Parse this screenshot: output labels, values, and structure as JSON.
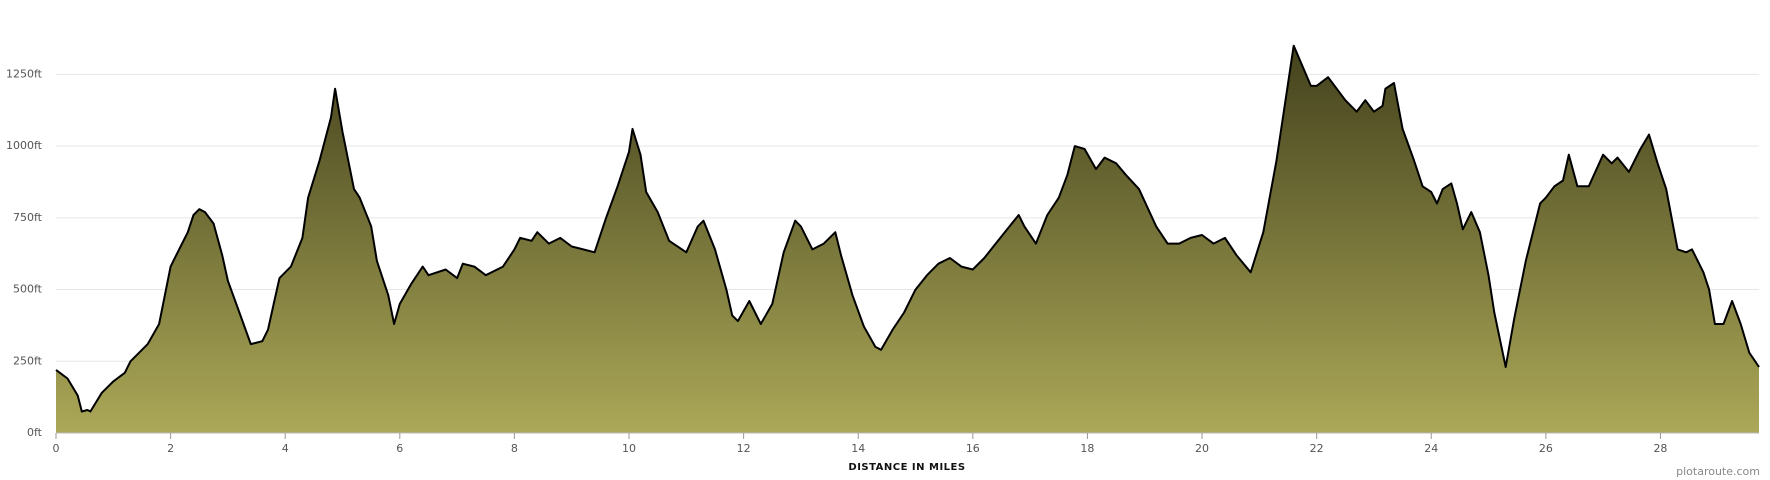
{
  "chart_data": {
    "type": "area",
    "x_label": "DISTANCE IN MILES",
    "credit": "plotaroute.com",
    "x": [
      0,
      0.2,
      0.38,
      0.45,
      0.55,
      0.6,
      0.8,
      1.0,
      1.2,
      1.3,
      1.5,
      1.6,
      1.8,
      2.0,
      2.1,
      2.3,
      2.4,
      2.5,
      2.6,
      2.75,
      2.9,
      3.0,
      3.2,
      3.4,
      3.6,
      3.7,
      3.8,
      3.9,
      4.1,
      4.3,
      4.4,
      4.6,
      4.8,
      4.87,
      5.0,
      5.2,
      5.3,
      5.5,
      5.6,
      5.8,
      5.9,
      6.0,
      6.2,
      6.4,
      6.5,
      6.8,
      7.0,
      7.1,
      7.3,
      7.5,
      7.8,
      8.0,
      8.1,
      8.3,
      8.4,
      8.6,
      8.8,
      9.0,
      9.2,
      9.4,
      9.6,
      9.8,
      10.0,
      10.06,
      10.2,
      10.3,
      10.5,
      10.7,
      11.0,
      11.2,
      11.3,
      11.5,
      11.7,
      11.8,
      11.9,
      12.1,
      12.3,
      12.5,
      12.7,
      12.9,
      13.0,
      13.2,
      13.4,
      13.6,
      13.7,
      13.9,
      14.1,
      14.3,
      14.4,
      14.6,
      14.8,
      15.0,
      15.2,
      15.4,
      15.6,
      15.8,
      16.0,
      16.2,
      16.4,
      16.6,
      16.8,
      16.9,
      17.1,
      17.3,
      17.5,
      17.65,
      17.78,
      17.95,
      18.15,
      18.3,
      18.5,
      18.67,
      18.9,
      19.2,
      19.4,
      19.6,
      19.8,
      20.0,
      20.2,
      20.4,
      20.6,
      20.85,
      21.07,
      21.3,
      21.6,
      21.9,
      22.0,
      22.2,
      22.5,
      22.7,
      22.85,
      23.0,
      23.15,
      23.2,
      23.35,
      23.5,
      23.7,
      23.85,
      24.0,
      24.1,
      24.2,
      24.35,
      24.45,
      24.55,
      24.7,
      24.85,
      25.0,
      25.1,
      25.3,
      25.45,
      25.65,
      25.9,
      26.0,
      26.15,
      26.3,
      26.4,
      26.55,
      26.75,
      27.0,
      27.15,
      27.25,
      27.45,
      27.65,
      27.8,
      27.95,
      28.1,
      28.3,
      28.45,
      28.55,
      28.75,
      28.85,
      28.95,
      29.1,
      29.25,
      29.4,
      29.55,
      29.72
    ],
    "values": [
      220,
      190,
      130,
      75,
      80,
      75,
      140,
      180,
      210,
      250,
      290,
      310,
      380,
      580,
      620,
      700,
      760,
      780,
      770,
      730,
      620,
      530,
      420,
      310,
      320,
      360,
      450,
      540,
      580,
      680,
      820,
      950,
      1100,
      1200,
      1050,
      850,
      820,
      720,
      600,
      480,
      380,
      450,
      520,
      580,
      550,
      570,
      540,
      590,
      580,
      550,
      580,
      640,
      680,
      670,
      700,
      660,
      680,
      650,
      640,
      630,
      750,
      860,
      980,
      1060,
      970,
      840,
      770,
      670,
      630,
      720,
      740,
      640,
      500,
      410,
      390,
      460,
      380,
      450,
      630,
      740,
      720,
      640,
      660,
      700,
      620,
      480,
      370,
      300,
      290,
      360,
      420,
      500,
      550,
      590,
      610,
      580,
      570,
      610,
      660,
      710,
      760,
      720,
      660,
      760,
      820,
      900,
      1000,
      990,
      920,
      960,
      940,
      900,
      850,
      720,
      660,
      660,
      680,
      690,
      660,
      680,
      620,
      560,
      700,
      950,
      1350,
      1210,
      1210,
      1240,
      1160,
      1120,
      1160,
      1120,
      1140,
      1200,
      1220,
      1060,
      950,
      860,
      840,
      800,
      850,
      870,
      800,
      710,
      770,
      700,
      550,
      420,
      230,
      400,
      600,
      800,
      820,
      860,
      880,
      970,
      860,
      860,
      970,
      940,
      960,
      910,
      990,
      1040,
      940,
      850,
      640,
      630,
      640,
      560,
      500,
      380,
      380,
      460,
      380,
      280,
      230
    ],
    "color": "#000000",
    "fill_colors": [
      "#3c3a18",
      "#aba858"
    ],
    "xlim": [
      0,
      29.72
    ],
    "ylim": [
      0,
      1450
    ],
    "xticks": [
      0,
      2,
      4,
      6,
      8,
      10,
      12,
      14,
      16,
      18,
      20,
      22,
      24,
      26,
      28
    ],
    "yticks": [
      {
        "value": 0,
        "label": "0ft"
      },
      {
        "value": 250,
        "label": "250ft"
      },
      {
        "value": 500,
        "label": "500ft"
      },
      {
        "value": 750,
        "label": "750ft"
      },
      {
        "value": 1000,
        "label": "1000ft"
      },
      {
        "value": 1250,
        "label": "1250ft"
      }
    ],
    "grid": true
  }
}
